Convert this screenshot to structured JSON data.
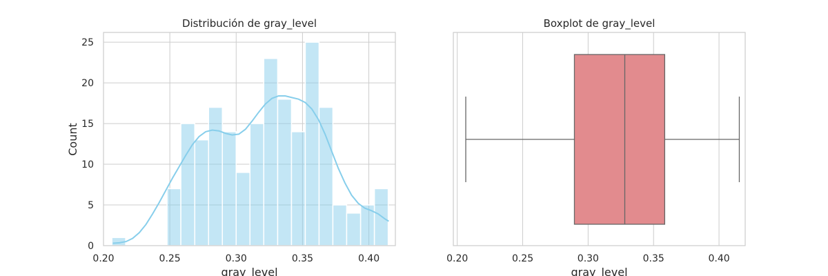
{
  "chart_data": [
    {
      "type": "bar",
      "title": "Distribución de gray_level",
      "xlabel": "gray_level",
      "ylabel": "Count",
      "xlim": [
        0.2,
        0.42
      ],
      "ylim": [
        0,
        26.2
      ],
      "xticks": [
        "0.20",
        "0.25",
        "0.30",
        "0.35",
        "0.40"
      ],
      "yticks": [
        "0",
        "5",
        "10",
        "15",
        "20",
        "25"
      ],
      "grid": true,
      "bar_color": "#87ceeb",
      "bins": [
        {
          "x0": 0.2063,
          "x1": 0.2167,
          "count": 1
        },
        {
          "x0": 0.2167,
          "x1": 0.2271,
          "count": 0
        },
        {
          "x0": 0.2271,
          "x1": 0.2375,
          "count": 0
        },
        {
          "x0": 0.2375,
          "x1": 0.2479,
          "count": 0
        },
        {
          "x0": 0.2479,
          "x1": 0.2583,
          "count": 7
        },
        {
          "x0": 0.2583,
          "x1": 0.2688,
          "count": 15
        },
        {
          "x0": 0.2688,
          "x1": 0.2792,
          "count": 13
        },
        {
          "x0": 0.2792,
          "x1": 0.2896,
          "count": 17
        },
        {
          "x0": 0.2896,
          "x1": 0.3,
          "count": 14
        },
        {
          "x0": 0.3,
          "x1": 0.3104,
          "count": 9
        },
        {
          "x0": 0.3104,
          "x1": 0.3208,
          "count": 15
        },
        {
          "x0": 0.3208,
          "x1": 0.3313,
          "count": 23
        },
        {
          "x0": 0.3313,
          "x1": 0.3417,
          "count": 18
        },
        {
          "x0": 0.3417,
          "x1": 0.3521,
          "count": 14
        },
        {
          "x0": 0.3521,
          "x1": 0.3625,
          "count": 25
        },
        {
          "x0": 0.3625,
          "x1": 0.3729,
          "count": 17
        },
        {
          "x0": 0.3729,
          "x1": 0.3833,
          "count": 5
        },
        {
          "x0": 0.3833,
          "x1": 0.3938,
          "count": 4
        },
        {
          "x0": 0.3938,
          "x1": 0.4042,
          "count": 5
        },
        {
          "x0": 0.4042,
          "x1": 0.4146,
          "count": 7
        }
      ],
      "kde": {
        "color": "#87ceeb",
        "x": [
          0.207,
          0.212,
          0.217,
          0.222,
          0.227,
          0.232,
          0.237,
          0.242,
          0.247,
          0.252,
          0.257,
          0.262,
          0.267,
          0.272,
          0.277,
          0.282,
          0.287,
          0.292,
          0.297,
          0.302,
          0.307,
          0.312,
          0.317,
          0.322,
          0.327,
          0.332,
          0.337,
          0.342,
          0.347,
          0.352,
          0.357,
          0.362,
          0.367,
          0.372,
          0.377,
          0.382,
          0.387,
          0.392,
          0.397,
          0.402,
          0.407,
          0.412,
          0.415
        ],
        "y": [
          0.3,
          0.35,
          0.5,
          0.9,
          1.6,
          2.6,
          3.9,
          5.3,
          6.8,
          8.3,
          9.7,
          11.1,
          12.4,
          13.4,
          14.0,
          14.2,
          14.1,
          13.8,
          13.6,
          13.7,
          14.3,
          15.3,
          16.4,
          17.4,
          18.1,
          18.4,
          18.4,
          18.2,
          18.0,
          17.6,
          16.8,
          15.5,
          13.7,
          11.6,
          9.5,
          7.7,
          6.2,
          5.2,
          4.6,
          4.3,
          3.9,
          3.3,
          3.0
        ]
      }
    },
    {
      "type": "box",
      "title": "Boxplot de gray_level",
      "xlabel": "gray_level",
      "xlim": [
        0.197,
        0.42
      ],
      "xticks": [
        "0.20",
        "0.25",
        "0.30",
        "0.35",
        "0.40"
      ],
      "grid": true,
      "box_color": "#e28b8e",
      "edge_color": "#666666",
      "whisker_low": 0.2065,
      "q1": 0.2895,
      "median": 0.328,
      "q3": 0.3585,
      "whisker_high": 0.4155
    }
  ]
}
